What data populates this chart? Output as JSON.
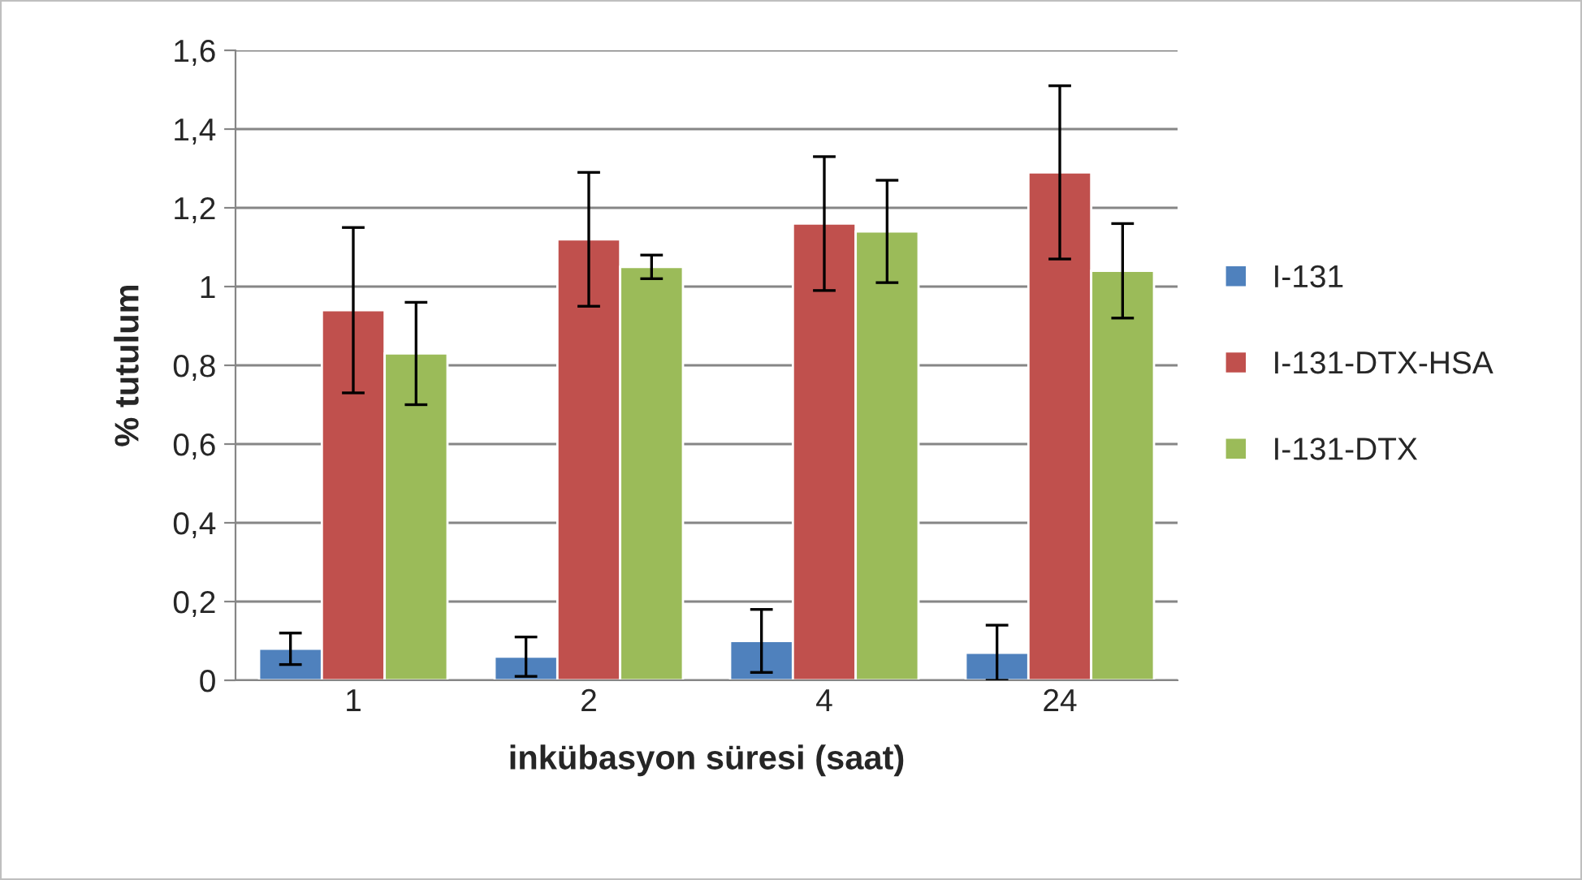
{
  "chart_data": {
    "type": "bar",
    "xlabel": "inkübasyon süresi (saat)",
    "ylabel": "% tutulum",
    "categories": [
      "1",
      "2",
      "4",
      "24"
    ],
    "series": [
      {
        "name": "I-131",
        "color": "#4f81bd",
        "values": [
          0.08,
          0.06,
          0.1,
          0.07
        ],
        "errors": [
          0.04,
          0.05,
          0.08,
          0.07
        ]
      },
      {
        "name": "I-131-DTX-HSA",
        "color": "#c0504d",
        "values": [
          0.94,
          1.12,
          1.16,
          1.29
        ],
        "errors": [
          0.21,
          0.17,
          0.17,
          0.22
        ]
      },
      {
        "name": "I-131-DTX",
        "color": "#9bbb59",
        "values": [
          0.83,
          1.05,
          1.14,
          1.04
        ],
        "errors": [
          0.13,
          0.03,
          0.13,
          0.12
        ]
      }
    ],
    "ylim": [
      0,
      1.6
    ],
    "yticks": [
      0,
      {
        "value": 0.2,
        "label": "0,2"
      },
      {
        "value": 0.4,
        "label": "0,4"
      },
      {
        "value": 0.6,
        "label": "0,6"
      },
      {
        "value": 0.8,
        "label": "0,8"
      },
      1,
      {
        "value": 1.2,
        "label": "1,2"
      },
      {
        "value": 1.4,
        "label": "1,4"
      },
      {
        "value": 1.6,
        "label": "1,6"
      }
    ],
    "grid": "y",
    "legend": "right"
  }
}
